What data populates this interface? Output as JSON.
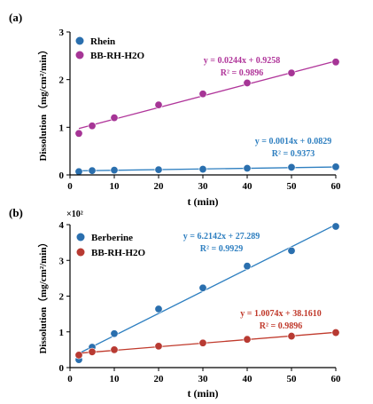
{
  "chart_data": [
    {
      "panel_label": "(a)",
      "type": "scatter",
      "xlabel": "t (min)",
      "ylabel": "Dissolution（mg/cm²/min）",
      "xlim": [
        0,
        60
      ],
      "ylim": [
        0,
        3
      ],
      "xticks": [
        0,
        10,
        20,
        30,
        40,
        50,
        60
      ],
      "yticks": [
        0,
        1,
        2,
        3
      ],
      "grid": false,
      "legend_position": "top-left",
      "series": [
        {
          "name": "Rhein",
          "color": "#2e7fc0",
          "marker_color": "#2a6fae",
          "x": [
            2,
            5,
            10,
            20,
            30,
            40,
            50,
            60
          ],
          "y": [
            0.07,
            0.09,
            0.1,
            0.11,
            0.12,
            0.14,
            0.16,
            0.17
          ],
          "fit": {
            "slope": 0.0014,
            "intercept": 0.0829
          },
          "equation": "y = 0.0014x + 0.0829",
          "r2": "R² = 0.9373"
        },
        {
          "name": "BB-RH-H2O",
          "color": "#b0359a",
          "marker_color": "#a63596",
          "x": [
            2,
            5,
            10,
            20,
            30,
            40,
            50,
            60
          ],
          "y": [
            0.87,
            1.03,
            1.2,
            1.47,
            1.7,
            1.93,
            2.14,
            2.37
          ],
          "fit": {
            "slope": 0.0244,
            "intercept": 0.9258
          },
          "equation": "y = 0.0244x + 0.9258",
          "r2": "R² = 0.9896"
        }
      ]
    },
    {
      "panel_label": "(b)",
      "type": "scatter",
      "xlabel": "t (min)",
      "ylabel": "Dissolution（mg/cm²/min）",
      "y_multiplier": "×10²",
      "xlim": [
        0,
        60
      ],
      "ylim": [
        0,
        4
      ],
      "xticks": [
        0,
        10,
        20,
        30,
        40,
        50,
        60
      ],
      "yticks": [
        0,
        1,
        2,
        3,
        4
      ],
      "grid": false,
      "legend_position": "top-left",
      "series": [
        {
          "name": "Berberine",
          "color": "#2e7fc0",
          "marker_color": "#2a6fae",
          "x": [
            2,
            5,
            10,
            20,
            30,
            40,
            50,
            60
          ],
          "y": [
            0.22,
            0.57,
            0.95,
            1.64,
            2.23,
            2.84,
            3.27,
            3.95
          ],
          "fit": {
            "slope": 0.062142,
            "intercept": 0.27289
          },
          "equation": "y = 6.2142x + 27.289",
          "r2": "R² = 0.9929"
        },
        {
          "name": "BB-RH-H2O",
          "color": "#c0392b",
          "marker_color": "#b83a32",
          "x": [
            2,
            5,
            10,
            20,
            30,
            40,
            50,
            60
          ],
          "y": [
            0.35,
            0.44,
            0.5,
            0.6,
            0.69,
            0.79,
            0.88,
            0.98
          ],
          "fit": {
            "slope": 0.010074,
            "intercept": 0.38161
          },
          "equation": "y = 1.0074x + 38.1610",
          "r2": "R² = 0.9896"
        }
      ]
    }
  ]
}
